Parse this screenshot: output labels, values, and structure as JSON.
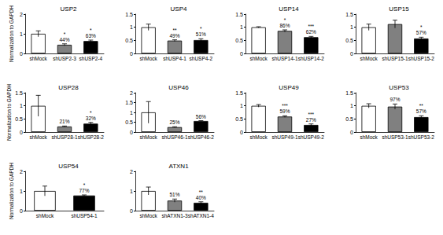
{
  "chart_data": [
    {
      "type": "bar",
      "title": "USP2",
      "ylabel": "Normalization to GAPDH",
      "categories": [
        "shMock",
        "shUSP2-3",
        "shUSP2-4"
      ],
      "values": [
        1,
        0.44,
        0.63
      ],
      "errors": [
        0.15,
        0.05,
        0.05
      ],
      "colors": [
        "#ffffff",
        "#808080",
        "#000000"
      ],
      "significance": [
        null,
        "*",
        "*"
      ],
      "value_labels": [
        null,
        "44%",
        "63%"
      ],
      "data_labels": true,
      "ylim": [
        0,
        2
      ],
      "yticks": [
        0,
        1,
        2
      ]
    },
    {
      "type": "bar",
      "title": "USP4",
      "categories": [
        "shMock",
        "shUSP4-1",
        "shUSP4-2"
      ],
      "values": [
        1,
        0.49,
        0.51
      ],
      "errors": [
        0.12,
        0.03,
        0.05
      ],
      "colors": [
        "#ffffff",
        "#808080",
        "#000000"
      ],
      "significance": [
        null,
        "**",
        "*"
      ],
      "value_labels": [
        null,
        "49%",
        "51%"
      ],
      "data_labels": true,
      "ylim": [
        0,
        1.5
      ],
      "yticks": [
        0,
        0.5,
        1,
        1.5
      ]
    },
    {
      "type": "bar",
      "title": "USP14",
      "categories": [
        "shMock",
        "shUSP14-1",
        "shUSP14-2"
      ],
      "values": [
        1,
        0.86,
        0.62
      ],
      "errors": [
        0.02,
        0.04,
        0.03
      ],
      "colors": [
        "#ffffff",
        "#808080",
        "#000000"
      ],
      "significance": [
        null,
        "*",
        "***"
      ],
      "value_labels": [
        null,
        "86%",
        "62%"
      ],
      "data_labels": true,
      "ylim": [
        0,
        1.5
      ],
      "yticks": [
        0,
        0.5,
        1,
        1.5
      ]
    },
    {
      "type": "bar",
      "title": "USP15",
      "categories": [
        "shMock",
        "shUSP15-1",
        "shUSP15-2"
      ],
      "values": [
        1,
        1.12,
        0.57
      ],
      "errors": [
        0.12,
        0.15,
        0.05
      ],
      "colors": [
        "#ffffff",
        "#808080",
        "#000000"
      ],
      "significance": [
        null,
        null,
        "*"
      ],
      "value_labels": [
        null,
        null,
        "57%"
      ],
      "data_labels": true,
      "ylim": [
        0,
        1.5
      ],
      "yticks": [
        0,
        0.5,
        1,
        1.5
      ]
    },
    {
      "type": "bar",
      "title": "USP28",
      "ylabel": "Normalization to GAPDH",
      "categories": [
        "shMock",
        "shUSP28-1",
        "shUSP28-2"
      ],
      "values": [
        1,
        0.21,
        0.32
      ],
      "errors": [
        0.4,
        0.02,
        0.05
      ],
      "colors": [
        "#ffffff",
        "#808080",
        "#000000"
      ],
      "significance": [
        null,
        null,
        "*"
      ],
      "value_labels": [
        null,
        "21%",
        "32%"
      ],
      "data_labels": true,
      "ylim": [
        0,
        1.5
      ],
      "yticks": [
        0,
        0.5,
        1,
        1.5
      ]
    },
    {
      "type": "bar",
      "title": "USP46",
      "categories": [
        "shMock",
        "shUSP46-1",
        "shUSP46-2"
      ],
      "values": [
        1,
        0.25,
        0.56
      ],
      "errors": [
        0.55,
        0.02,
        0.02
      ],
      "colors": [
        "#ffffff",
        "#808080",
        "#000000"
      ],
      "significance": [
        null,
        null,
        null
      ],
      "value_labels": [
        null,
        "25%",
        "56%"
      ],
      "data_labels": true,
      "ylim": [
        0,
        2
      ],
      "yticks": [
        0,
        0.5,
        1,
        1.5,
        2
      ]
    },
    {
      "type": "bar",
      "title": "USP49",
      "categories": [
        "shMock",
        "shUSP49-1",
        "shUSP49-2"
      ],
      "values": [
        1,
        0.59,
        0.27
      ],
      "errors": [
        0.05,
        0.03,
        0.04
      ],
      "colors": [
        "#ffffff",
        "#808080",
        "#000000"
      ],
      "significance": [
        null,
        "***",
        "***"
      ],
      "value_labels": [
        null,
        "59%",
        "27%"
      ],
      "data_labels": true,
      "ylim": [
        0,
        1.5
      ],
      "yticks": [
        0,
        0.5,
        1,
        1.5
      ]
    },
    {
      "type": "bar",
      "title": "USP53",
      "categories": [
        "shMock",
        "shUSP53-1",
        "shUSP53-2"
      ],
      "values": [
        1,
        0.97,
        0.57
      ],
      "errors": [
        0.08,
        0.1,
        0.05
      ],
      "colors": [
        "#ffffff",
        "#808080",
        "#000000"
      ],
      "significance": [
        null,
        null,
        "**"
      ],
      "value_labels": [
        null,
        "97%",
        "57%"
      ],
      "data_labels": true,
      "ylim": [
        0,
        1.5
      ],
      "yticks": [
        0,
        0.5,
        1,
        1.5
      ]
    },
    {
      "type": "bar",
      "title": "USP54",
      "ylabel": "Normalization to GAPDH",
      "categories": [
        "shMock",
        "shUSP54-1"
      ],
      "values": [
        1,
        0.77
      ],
      "errors": [
        0.25,
        0.03
      ],
      "colors": [
        "#ffffff",
        "#000000"
      ],
      "significance": [
        null,
        "*"
      ],
      "value_labels": [
        null,
        "77%"
      ],
      "data_labels": true,
      "ylim": [
        0,
        2
      ],
      "yticks": [
        0,
        1,
        2
      ]
    },
    {
      "type": "bar",
      "title": "ATXN1",
      "categories": [
        "shMock",
        "shATXN1-3",
        "shATXN1-4"
      ],
      "values": [
        1,
        0.51,
        0.4
      ],
      "errors": [
        0.2,
        0.08,
        0.05
      ],
      "colors": [
        "#ffffff",
        "#808080",
        "#000000"
      ],
      "significance": [
        null,
        null,
        "**"
      ],
      "value_labels": [
        null,
        "51%",
        "40%"
      ],
      "data_labels": true,
      "ylim": [
        0,
        2
      ],
      "yticks": [
        0,
        1,
        2
      ]
    }
  ]
}
